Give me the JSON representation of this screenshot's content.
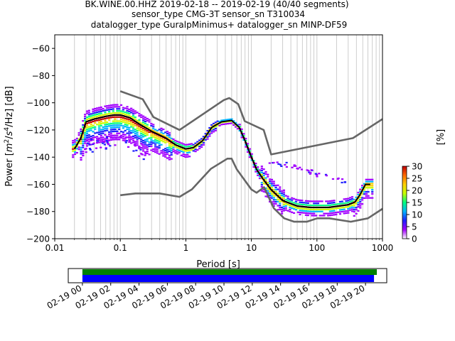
{
  "header": {
    "line1": "BK.WINE.00.HHZ   2019-02-18 -- 2019-02-19  (40/40 segments)",
    "line2": "sensor_type CMG-3T sensor_sn T310034",
    "line3": "datalogger_type GuralpMinimus+ datalogger_sn MINP-DF59"
  },
  "chart_data": [
    {
      "type": "heatmap",
      "title": "",
      "xlabel": "Period [s]",
      "ylabel_parts": [
        "Power [",
        "m",
        "2",
        "/",
        "s",
        "4",
        "/Hz] [dB]"
      ],
      "x_scale": "log",
      "xlim": [
        0.01,
        1000
      ],
      "ylim": [
        -200,
        -50
      ],
      "x_ticks": [
        {
          "value": 0.01,
          "label": "0.01"
        },
        {
          "value": 0.1,
          "label": "0.1"
        },
        {
          "value": 1,
          "label": "1"
        },
        {
          "value": 10,
          "label": "10"
        },
        {
          "value": 100,
          "label": "100"
        },
        {
          "value": 1000,
          "label": "1000"
        }
      ],
      "y_ticks": [
        {
          "value": -60,
          "label": "−60"
        },
        {
          "value": -80,
          "label": "−80"
        },
        {
          "value": -100,
          "label": "−100"
        },
        {
          "value": -120,
          "label": "−120"
        },
        {
          "value": -140,
          "label": "−140"
        },
        {
          "value": -160,
          "label": "−160"
        },
        {
          "value": -180,
          "label": "−180"
        },
        {
          "value": -200,
          "label": "−200"
        }
      ],
      "grid": "vertical-minor",
      "colorbar": {
        "label": "[%]",
        "range": [
          0,
          30
        ],
        "ticks": [
          {
            "value": 0,
            "label": "0"
          },
          {
            "value": 5,
            "label": "5"
          },
          {
            "value": 10,
            "label": "10"
          },
          {
            "value": 15,
            "label": "15"
          },
          {
            "value": 20,
            "label": "20"
          },
          {
            "value": 25,
            "label": "25"
          },
          {
            "value": 30,
            "label": "30"
          }
        ],
        "colors": [
          "#ffffff",
          "#a200ff",
          "#2020ff",
          "#00b4ff",
          "#00ff80",
          "#c8ff00",
          "#ffd000",
          "#ff6a00",
          "#c00000"
        ]
      },
      "series": [
        {
          "role": "mean",
          "color": "#000000",
          "x": [
            0.02,
            0.025,
            0.03,
            0.04,
            0.06,
            0.08,
            0.1,
            0.14,
            0.2,
            0.3,
            0.5,
            0.7,
            1.0,
            1.3,
            1.8,
            2.5,
            3.5,
            5.0,
            6.5,
            8.0,
            10,
            12,
            15,
            20,
            30,
            50,
            80,
            150,
            300,
            380,
            450,
            550,
            650
          ],
          "y": [
            -134,
            -126,
            -114,
            -112,
            -110,
            -109,
            -109,
            -111,
            -116,
            -121,
            -126,
            -131,
            -134,
            -133,
            -128,
            -118,
            -114,
            -113,
            -118,
            -128,
            -140,
            -149,
            -156,
            -164,
            -172,
            -176,
            -177,
            -177,
            -175,
            -173,
            -168,
            -160,
            -160
          ]
        },
        {
          "role": "noise-model-high",
          "color": "#666666",
          "x": [
            0.1,
            0.22,
            0.32,
            0.8,
            3.8,
            4.6,
            6.3,
            7.9,
            15.4,
            20,
            354.8,
            1000
          ],
          "y": [
            -91.5,
            -97.4,
            -110.5,
            -120,
            -98,
            -96.5,
            -101,
            -113.5,
            -120,
            -138,
            -126,
            -112
          ]
        },
        {
          "role": "noise-model-low",
          "color": "#666666",
          "x": [
            0.1,
            0.17,
            0.4,
            0.8,
            1.24,
            2.4,
            4.3,
            5.0,
            6.0,
            10,
            12,
            15.6,
            21.9,
            31.6,
            45,
            70,
            101,
            154,
            328,
            600,
            1000
          ],
          "y": [
            -168,
            -166.7,
            -166.7,
            -169.2,
            -163.7,
            -148.6,
            -141.1,
            -141.1,
            -149,
            -163.8,
            -166.2,
            -162.1,
            -177.5,
            -185,
            -187.5,
            -187.5,
            -185,
            -185,
            -187.5,
            -185,
            -178
          ]
        }
      ]
    },
    {
      "type": "timeline",
      "title": "",
      "x_range": [
        "2019-02-18 23:00",
        "2019-02-19 21:30"
      ],
      "x_ticks": [
        {
          "value": 0,
          "label": "02-19 00"
        },
        {
          "value": 2,
          "label": "02-19 02"
        },
        {
          "value": 4,
          "label": "02-19 04"
        },
        {
          "value": 6,
          "label": "02-19 06"
        },
        {
          "value": 8,
          "label": "02-19 08"
        },
        {
          "value": 10,
          "label": "02-19 10"
        },
        {
          "value": 12,
          "label": "02-19 12"
        },
        {
          "value": 14,
          "label": "02-19 14"
        },
        {
          "value": 16,
          "label": "02-19 16"
        },
        {
          "value": 18,
          "label": "02-19 18"
        },
        {
          "value": 20,
          "label": "02-19 20"
        }
      ],
      "bars": [
        {
          "role": "available",
          "color": "#008000",
          "start_hour": 0,
          "end_hour": 20.8
        },
        {
          "role": "used",
          "color": "#0000ff",
          "start_hour": 0,
          "end_hour": 20.6
        }
      ]
    }
  ]
}
